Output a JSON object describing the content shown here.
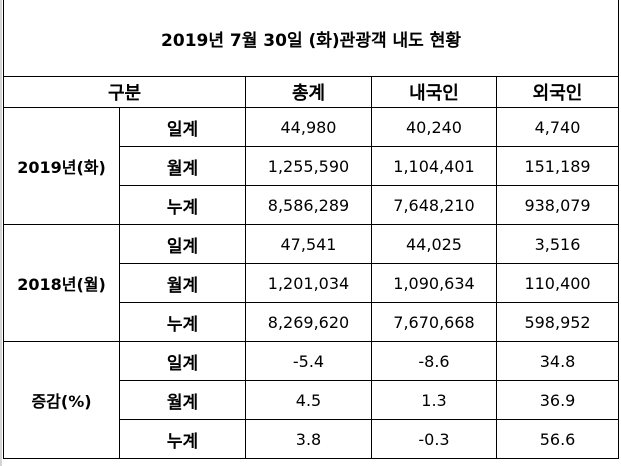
{
  "title": "2019년 7월 30일 (화)관광객 내도 현황",
  "headers": {
    "category": "구분",
    "total": "총계",
    "domestic": "내국인",
    "foreign": "외국인"
  },
  "groups": [
    {
      "label": "2019년(화)",
      "rows": [
        {
          "label": "일계",
          "total": "44,980",
          "domestic": "40,240",
          "foreign": "4,740"
        },
        {
          "label": "월계",
          "total": "1,255,590",
          "domestic": "1,104,401",
          "foreign": "151,189"
        },
        {
          "label": "누계",
          "total": "8,586,289",
          "domestic": "7,648,210",
          "foreign": "938,079"
        }
      ]
    },
    {
      "label": "2018년(월)",
      "rows": [
        {
          "label": "일계",
          "total": "47,541",
          "domestic": "44,025",
          "foreign": "3,516"
        },
        {
          "label": "월계",
          "total": "1,201,034",
          "domestic": "1,090,634",
          "foreign": "110,400"
        },
        {
          "label": "누계",
          "total": "8,269,620",
          "domestic": "7,670,668",
          "foreign": "598,952"
        }
      ]
    },
    {
      "label": "증감(%)",
      "rows": [
        {
          "label": "일계",
          "total": "-5.4",
          "domestic": "-8.6",
          "foreign": "34.8"
        },
        {
          "label": "월계",
          "total": "4.5",
          "domestic": "1.3",
          "foreign": "36.9"
        },
        {
          "label": "누계",
          "total": "3.8",
          "domestic": "-0.3",
          "foreign": "56.6"
        }
      ]
    }
  ]
}
